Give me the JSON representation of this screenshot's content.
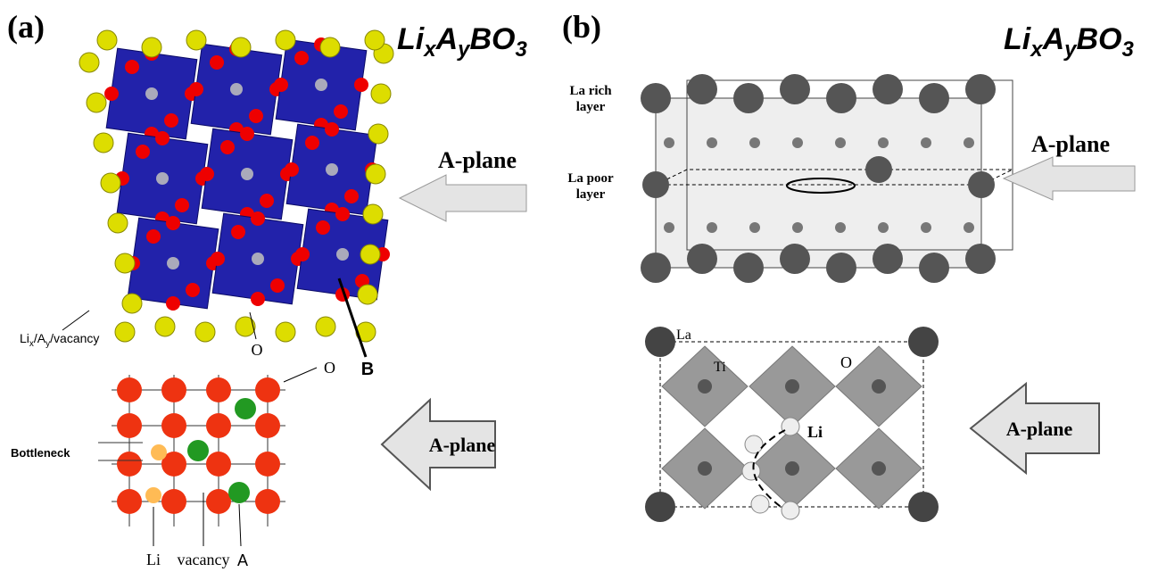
{
  "panel_a": {
    "label": "(a)",
    "formula": [
      "Li",
      "x",
      "A",
      "y",
      "BO",
      "3"
    ],
    "top": {
      "a_plane": "A-plane",
      "site_label": [
        "Li",
        "x",
        "/A",
        "y",
        "/vacancy"
      ],
      "o_label": "O",
      "b_label": "B"
    },
    "bottom": {
      "o_label": "O",
      "bottleneck": "Bottleneck",
      "a_plane": "A-plane",
      "li": "Li",
      "vacancy": "vacancy",
      "a": "A"
    }
  },
  "panel_b": {
    "label": "(b)",
    "formula": [
      "Li",
      "x",
      "A",
      "y",
      "BO",
      "3"
    ],
    "top": {
      "la_rich": [
        "La rich",
        "layer"
      ],
      "la_poor": [
        "La poor",
        "layer"
      ],
      "a_plane": "A-plane"
    },
    "bottom": {
      "la": "La",
      "ti": "Ti",
      "o": "O",
      "li": "Li",
      "a_plane": "A-plane"
    }
  }
}
